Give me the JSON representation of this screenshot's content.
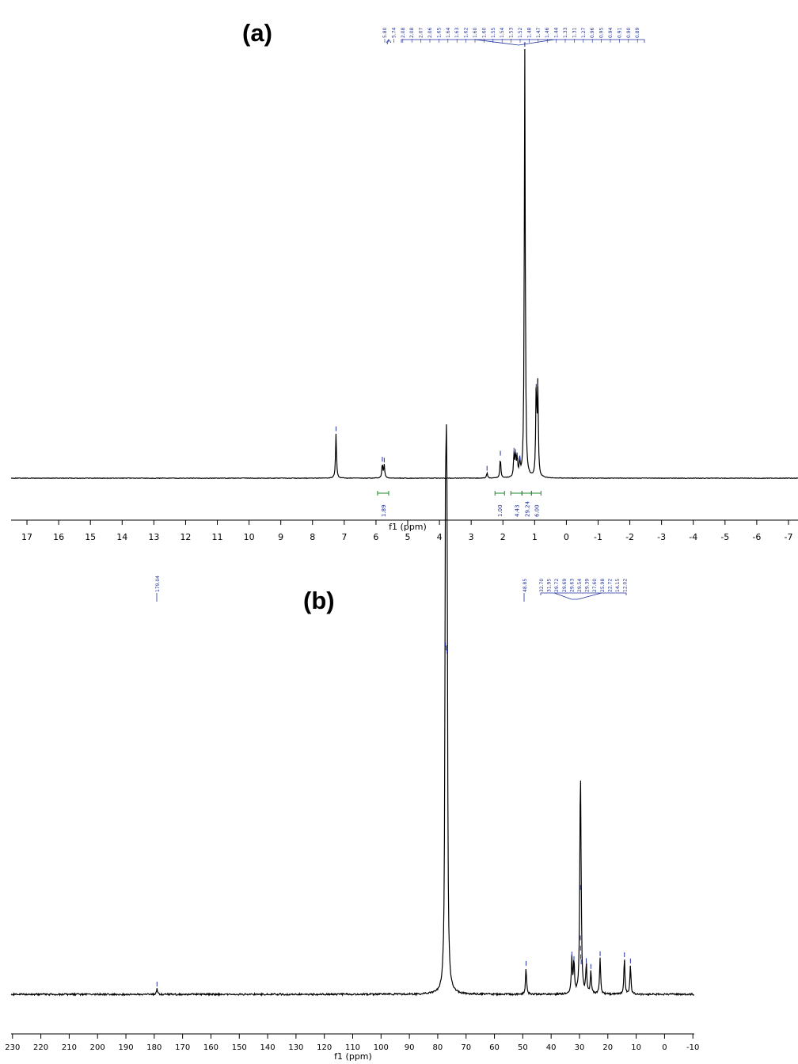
{
  "colors": {
    "spectrum": "#000000",
    "peak_label": "#1f2f9a",
    "integral": "#1e8a2b",
    "axis": "#000000"
  },
  "panels": {
    "a": {
      "label": "(a)"
    },
    "b": {
      "label": "(b)"
    }
  },
  "chart_data": [
    {
      "type": "line",
      "panel": "(a)",
      "xlabel": "f1 (ppm)",
      "ylabel": "",
      "xlim": [
        17.5,
        -7.3
      ],
      "x_reversed": true,
      "ylim": [
        0,
        100
      ],
      "grid": false,
      "x_ticks": [
        17,
        16,
        15,
        14,
        13,
        12,
        11,
        10,
        9,
        8,
        7,
        6,
        5,
        4,
        3,
        2,
        1,
        0,
        -1,
        -2,
        -3,
        -4,
        -5,
        -6,
        -7
      ],
      "peaks": [
        {
          "x": 7.26,
          "y": 10.4
        },
        {
          "x": 5.8,
          "y": 3.3
        },
        {
          "x": 5.74,
          "y": 3.1
        },
        {
          "x": 2.5,
          "y": 1.2
        },
        {
          "x": 2.08,
          "y": 4.7
        },
        {
          "x": 1.65,
          "y": 5.4
        },
        {
          "x": 1.6,
          "y": 5.1
        },
        {
          "x": 1.55,
          "y": 4.3
        },
        {
          "x": 1.47,
          "y": 3.6
        },
        {
          "x": 1.31,
          "y": 100
        },
        {
          "x": 0.95,
          "y": 20.3
        },
        {
          "x": 0.9,
          "y": 20.8
        }
      ],
      "peak_labels": [
        "5.80",
        "5.74",
        "2.08",
        "2.08",
        "2.07",
        "2.06",
        "1.65",
        "1.64",
        "1.63",
        "1.62",
        "1.60",
        "1.60",
        "1.55",
        "1.54",
        "1.53",
        "1.52",
        "1.48",
        "1.47",
        "1.46",
        "1.44",
        "1.33",
        "1.31",
        "1.27",
        "0.96",
        "0.95",
        "0.94",
        "0.91",
        "0.90",
        "0.89"
      ],
      "integrals": [
        {
          "x1": 5.95,
          "x2": 5.6,
          "value": "1.89"
        },
        {
          "x1": 2.25,
          "x2": 1.95,
          "value": "1.00"
        },
        {
          "x1": 1.75,
          "x2": 1.4,
          "value": "4.43"
        },
        {
          "x1": 1.4,
          "x2": 1.1,
          "value": "29.24"
        },
        {
          "x1": 1.1,
          "x2": 0.8,
          "value": "6.00"
        }
      ]
    },
    {
      "type": "line",
      "panel": "(b)",
      "xlabel": "f1 (ppm)",
      "ylabel": "",
      "xlim": [
        230.5,
        -10.5
      ],
      "x_reversed": true,
      "ylim": [
        0,
        100
      ],
      "grid": false,
      "x_ticks": [
        230,
        220,
        210,
        200,
        190,
        180,
        170,
        160,
        150,
        140,
        130,
        120,
        110,
        100,
        90,
        80,
        70,
        60,
        50,
        40,
        30,
        20,
        10,
        0,
        -10
      ],
      "peaks": [
        {
          "x": 179.04,
          "y": 1.6
        },
        {
          "x": 77.3,
          "y": 100
        },
        {
          "x": 77.0,
          "y": 99
        },
        {
          "x": 76.7,
          "y": 98
        },
        {
          "x": 48.85,
          "y": 7.6
        },
        {
          "x": 32.7,
          "y": 10.3
        },
        {
          "x": 31.95,
          "y": 9.0
        },
        {
          "x": 29.72,
          "y": 29.6
        },
        {
          "x": 29.69,
          "y": 15.0
        },
        {
          "x": 29.63,
          "y": 12.0
        },
        {
          "x": 29.54,
          "y": 9.5
        },
        {
          "x": 29.39,
          "y": 8.0
        },
        {
          "x": 27.6,
          "y": 8.4
        },
        {
          "x": 25.98,
          "y": 6.7
        },
        {
          "x": 22.72,
          "y": 10.4
        },
        {
          "x": 14.15,
          "y": 10.1
        },
        {
          "x": 12.02,
          "y": 8.3
        }
      ],
      "peak_labels_left": [
        "179.04"
      ],
      "peak_labels_mid": [
        "48.85"
      ],
      "peak_labels_right": [
        "32.70",
        "31.95",
        "29.72",
        "29.69",
        "29.63",
        "29.54",
        "29.39",
        "27.60",
        "25.98",
        "22.72",
        "14.15",
        "12.02"
      ]
    }
  ]
}
